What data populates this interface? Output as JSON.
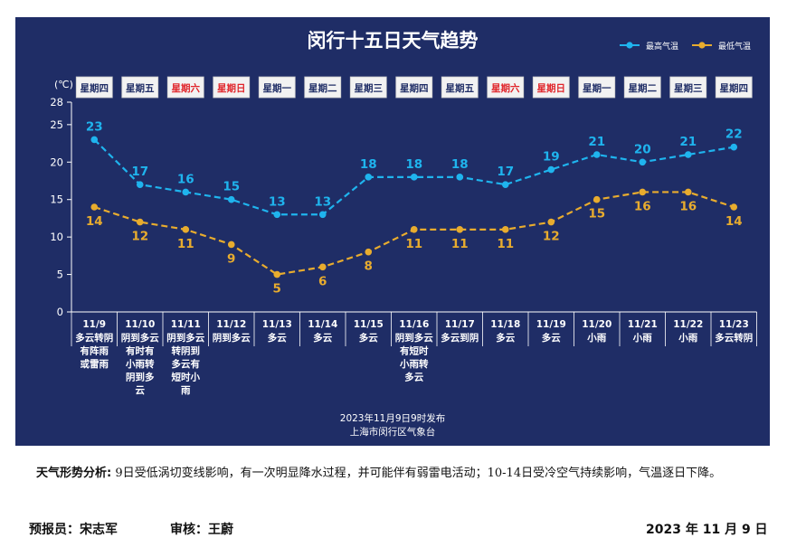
{
  "chart_data": {
    "type": "line",
    "title": "闵行十五日天气趋势",
    "unit_label": "(℃)",
    "ylim": [
      0,
      28
    ],
    "yticks": [
      0,
      5,
      10,
      15,
      20,
      25,
      28
    ],
    "grid": false,
    "legend_position": "top-right",
    "weekdays": [
      "星期四",
      "星期五",
      "星期六",
      "星期日",
      "星期一",
      "星期二",
      "星期三",
      "星期四",
      "星期五",
      "星期六",
      "星期日",
      "星期一",
      "星期二",
      "星期三",
      "星期四"
    ],
    "weekend_flags": [
      false,
      false,
      true,
      true,
      false,
      false,
      false,
      false,
      false,
      true,
      true,
      false,
      false,
      false,
      false
    ],
    "dates": [
      "11/9",
      "11/10",
      "11/11",
      "11/12",
      "11/13",
      "11/14",
      "11/15",
      "11/16",
      "11/17",
      "11/18",
      "11/19",
      "11/20",
      "11/21",
      "11/22",
      "11/23"
    ],
    "conditions": [
      [
        "多云转阴",
        "有阵雨",
        "或雷雨"
      ],
      [
        "阴到多云",
        "有时有",
        "小雨转",
        "阴到多",
        "云"
      ],
      [
        "阴到多云",
        "转阴到",
        "多云有",
        "短时小",
        "雨"
      ],
      [
        "阴到多云"
      ],
      [
        "多云"
      ],
      [
        "多云"
      ],
      [
        "多云"
      ],
      [
        "阴到多云",
        "有短时",
        "小雨转",
        "多云"
      ],
      [
        "多云到阴"
      ],
      [
        "多云"
      ],
      [
        "多云"
      ],
      [
        "小雨"
      ],
      [
        "小雨"
      ],
      [
        "小雨"
      ],
      [
        "多云转阴"
      ]
    ],
    "series": [
      {
        "name": "最高气温",
        "color": "#1fb4ee",
        "values": [
          23,
          17,
          16,
          15,
          13,
          13,
          18,
          18,
          18,
          17,
          19,
          21,
          20,
          21,
          22
        ]
      },
      {
        "name": "最低气温",
        "color": "#e8ac2e",
        "values": [
          14,
          12,
          11,
          9,
          5,
          6,
          8,
          11,
          11,
          11,
          12,
          15,
          16,
          16,
          14
        ]
      }
    ],
    "publish_line1": "2023年11月9日9时发布",
    "publish_line2": "上海市闵行区气象台"
  },
  "analysis": {
    "label": "天气形势分析:",
    "text": "9日受低涡切变线影响，有一次明显降水过程，并可能伴有弱雷电活动；10-14日受冷空气持续影响，气温逐日下降。"
  },
  "footer": {
    "forecaster": "预报员：宋志军",
    "reviewer": "审核：王蔚",
    "date": "2023 年 11 月 9 日"
  }
}
